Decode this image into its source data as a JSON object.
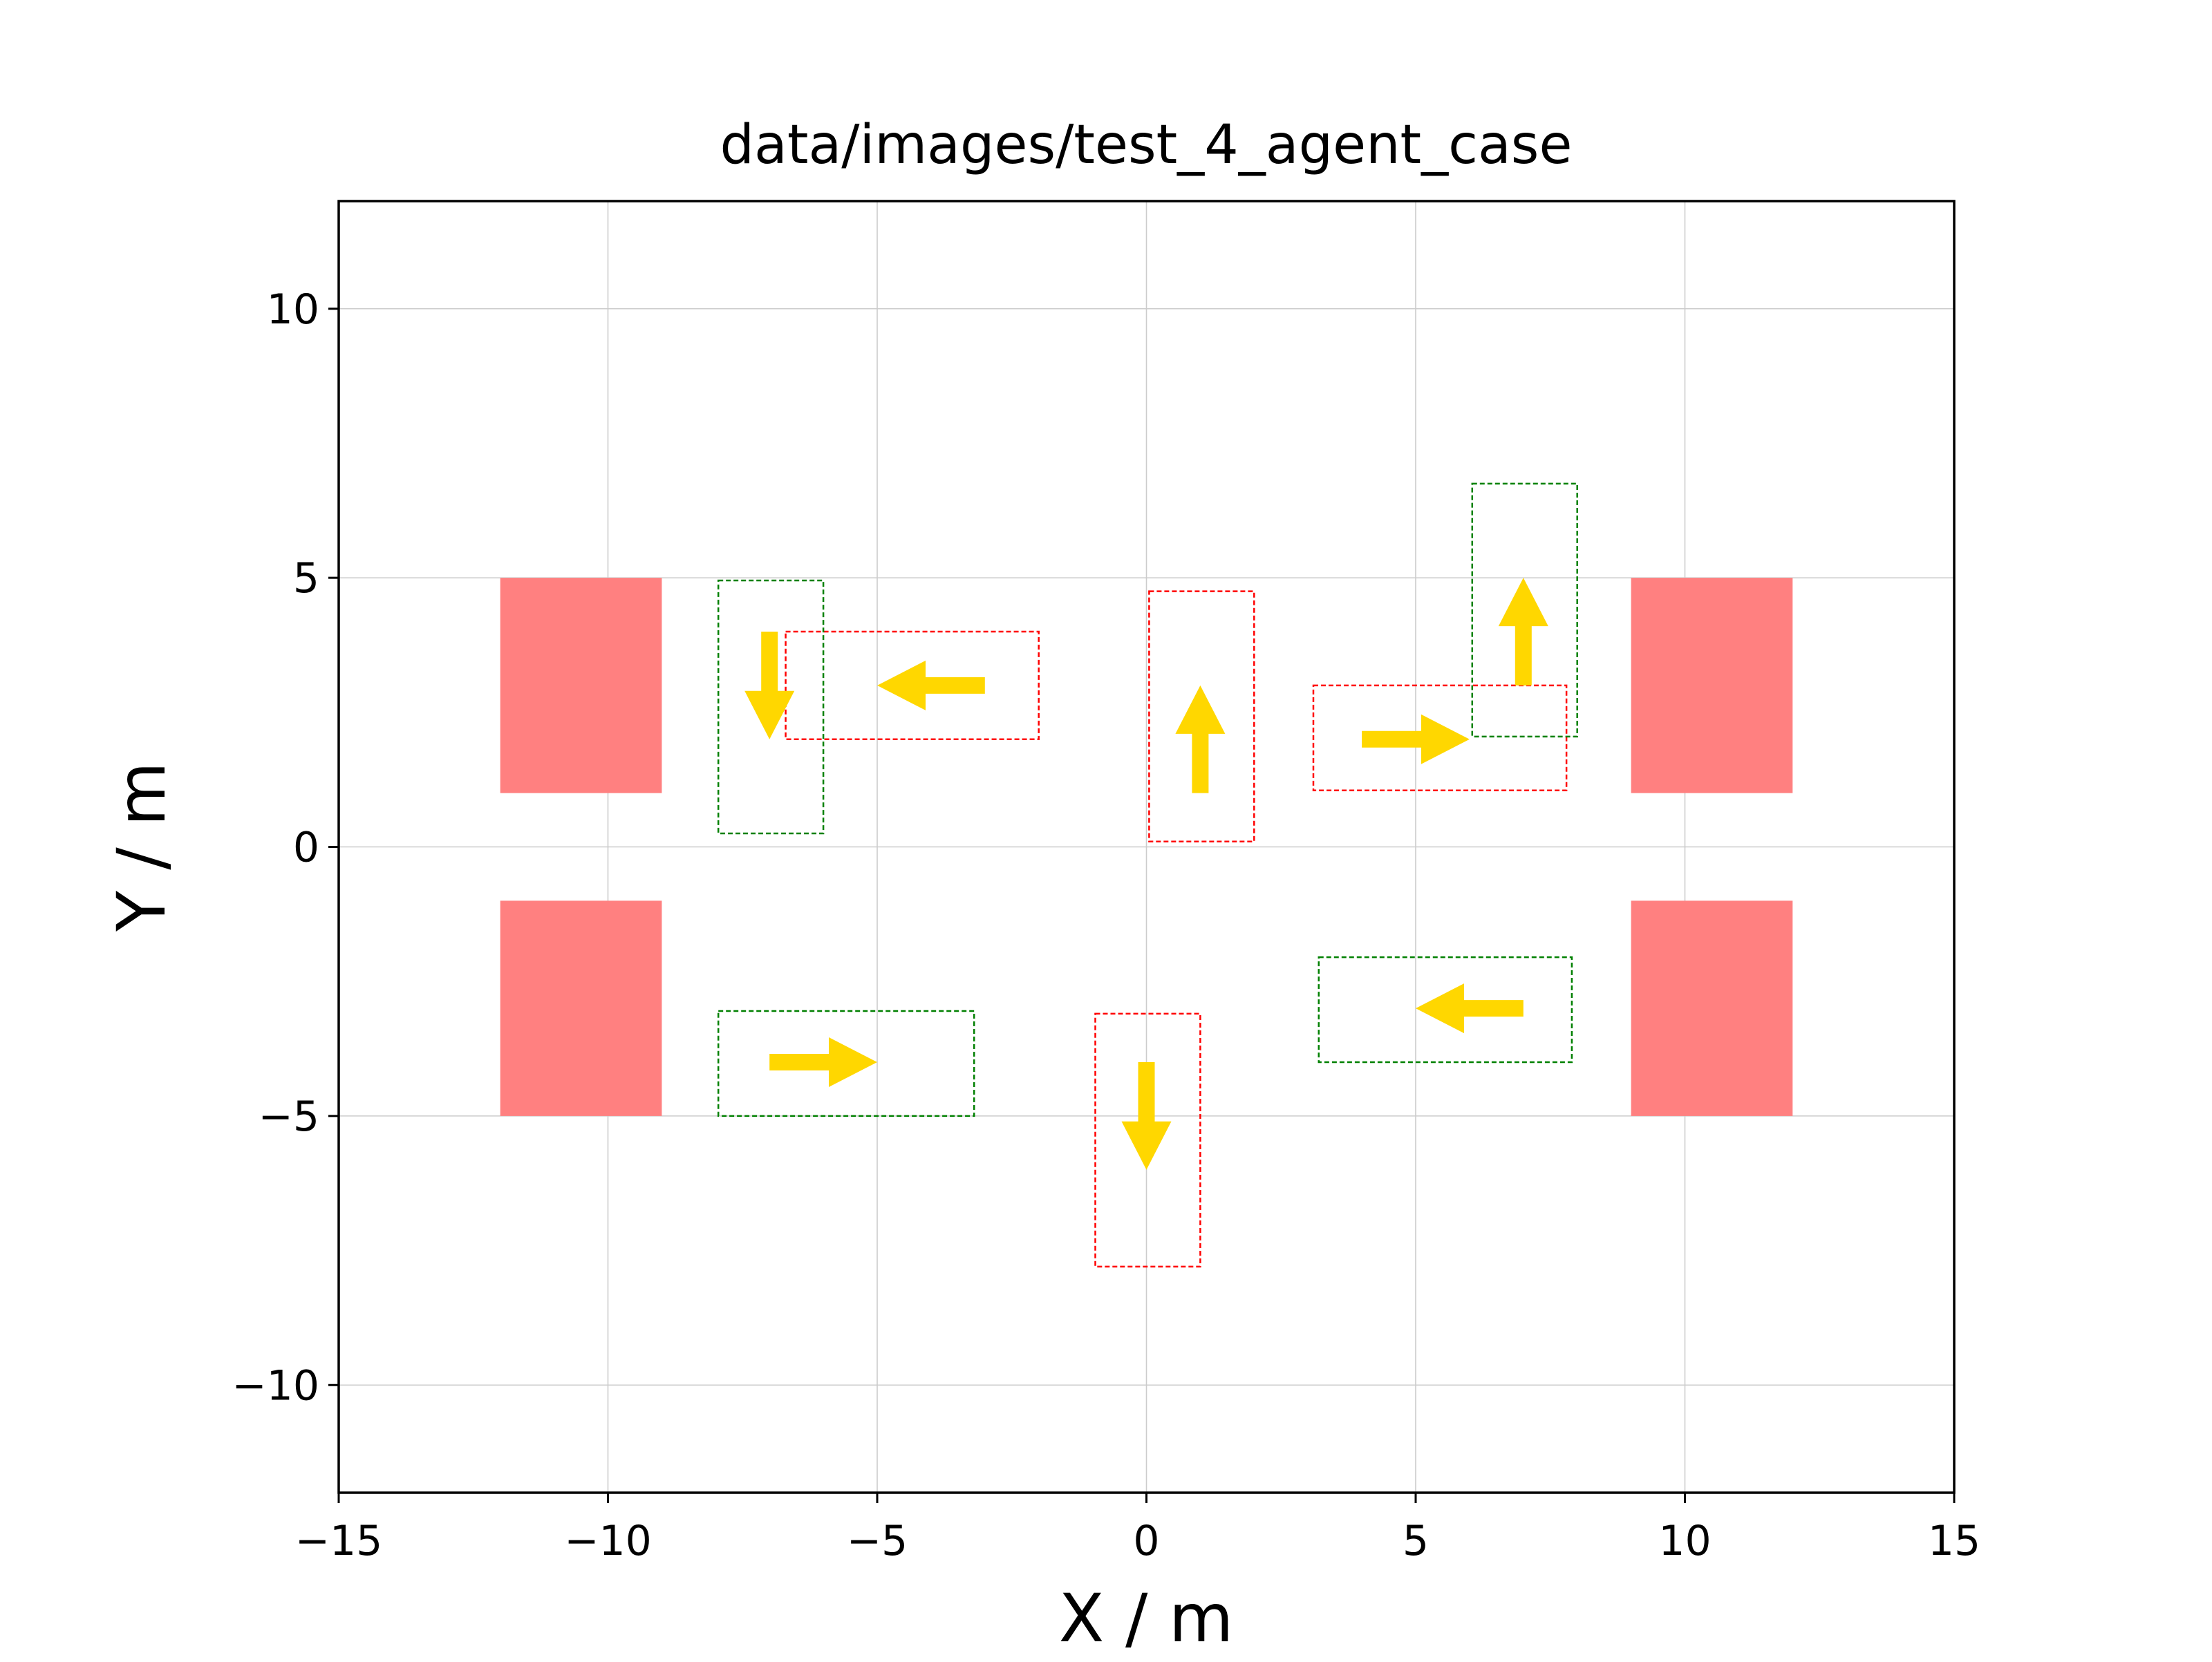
{
  "chart_data": {
    "type": "scatter",
    "title": "data/images/test_4_agent_case",
    "xlabel": "X / m",
    "ylabel": "Y / m",
    "xlim": [
      -15,
      15
    ],
    "ylim": [
      -12,
      12
    ],
    "grid": true,
    "xticks": [
      -15,
      -10,
      -5,
      0,
      5,
      10,
      15
    ],
    "xtick_labels": [
      "−15",
      "−10",
      "−5",
      "0",
      "5",
      "10",
      "15"
    ],
    "yticks": [
      -10,
      -5,
      0,
      5,
      10
    ],
    "ytick_labels": [
      "−10",
      "−5",
      "0",
      "5",
      "10"
    ],
    "colors": {
      "obstacle": "#ff8080",
      "arrow": "#ffd700",
      "red_box": "#ff0000",
      "green_box": "#008000",
      "grid": "#cccccc"
    },
    "obstacles": [
      {
        "x": [
          -12,
          -9
        ],
        "y": [
          1,
          5
        ]
      },
      {
        "x": [
          -12,
          -9
        ],
        "y": [
          -5,
          -1
        ]
      },
      {
        "x": [
          9,
          12
        ],
        "y": [
          1,
          5
        ]
      },
      {
        "x": [
          9,
          12
        ],
        "y": [
          -5,
          -1
        ]
      }
    ],
    "red_boxes": [
      {
        "x": [
          -6.7,
          -2.0
        ],
        "y": [
          2.0,
          4.0
        ]
      },
      {
        "x": [
          0.05,
          2.0
        ],
        "y": [
          0.1,
          4.75
        ]
      },
      {
        "x": [
          3.1,
          7.8
        ],
        "y": [
          1.05,
          3.0
        ]
      },
      {
        "x": [
          -0.95,
          1.0
        ],
        "y": [
          -7.8,
          -3.1
        ]
      }
    ],
    "green_boxes": [
      {
        "x": [
          -7.95,
          -6.0
        ],
        "y": [
          0.25,
          4.95
        ]
      },
      {
        "x": [
          6.05,
          8.0
        ],
        "y": [
          2.05,
          6.75
        ]
      },
      {
        "x": [
          -7.95,
          -3.2
        ],
        "y": [
          -5.0,
          -3.05
        ]
      },
      {
        "x": [
          3.2,
          7.9
        ],
        "y": [
          -4.0,
          -2.05
        ]
      }
    ],
    "arrows": [
      {
        "x": -7.0,
        "y": 4.0,
        "dx": 0,
        "dy": -2.0
      },
      {
        "x": -3.0,
        "y": 3.0,
        "dx": -2.0,
        "dy": 0
      },
      {
        "x": 1.0,
        "y": 1.0,
        "dx": 0,
        "dy": 2.0
      },
      {
        "x": 4.0,
        "y": 2.0,
        "dx": 2.0,
        "dy": 0
      },
      {
        "x": 7.0,
        "y": 3.0,
        "dx": 0,
        "dy": 2.0
      },
      {
        "x": -7.0,
        "y": -4.0,
        "dx": 2.0,
        "dy": 0
      },
      {
        "x": 0.0,
        "y": -4.0,
        "dx": 0,
        "dy": -2.0
      },
      {
        "x": 7.0,
        "y": -3.0,
        "dx": -2.0,
        "dy": 0
      }
    ]
  }
}
